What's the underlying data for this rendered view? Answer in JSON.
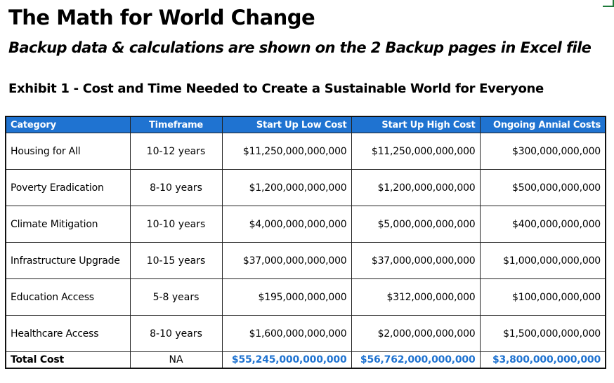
{
  "title": "The Math for World Change",
  "subtitle": "Backup data & calculations are shown on the 2 Backup pages in Excel file",
  "exhibit_title": "Exhibit 1 - Cost and Time Needed to Create a Sustainable World for Everyone",
  "colors": {
    "header_background": "#1f73d1",
    "header_text": "#ffffff",
    "total_value_text": "#1f73d1"
  },
  "table": {
    "headers": {
      "category": "Category",
      "timeframe": "Timeframe",
      "low_cost": "Start Up Low Cost",
      "high_cost": "Start Up High Cost",
      "ongoing": "Ongoing Annial Costs"
    },
    "rows": [
      {
        "category": "Housing for All",
        "timeframe": "10-12 years",
        "low_cost": "$11,250,000,000,000",
        "high_cost": "$11,250,000,000,000",
        "ongoing": "$300,000,000,000"
      },
      {
        "category": "Poverty Eradication",
        "timeframe": "8-10 years",
        "low_cost": "$1,200,000,000,000",
        "high_cost": "$1,200,000,000,000",
        "ongoing": "$500,000,000,000"
      },
      {
        "category": "Climate Mitigation",
        "timeframe": "10-10 years",
        "low_cost": "$4,000,000,000,000",
        "high_cost": "$5,000,000,000,000",
        "ongoing": "$400,000,000,000"
      },
      {
        "category": "Infrastructure Upgrade",
        "timeframe": "10-15 years",
        "low_cost": "$37,000,000,000,000",
        "high_cost": "$37,000,000,000,000",
        "ongoing": "$1,000,000,000,000"
      },
      {
        "category": "Education Access",
        "timeframe": "5-8 years",
        "low_cost": "$195,000,000,000",
        "high_cost": "$312,000,000,000",
        "ongoing": "$100,000,000,000"
      },
      {
        "category": "Healthcare Access",
        "timeframe": "8-10 years",
        "low_cost": "$1,600,000,000,000",
        "high_cost": "$2,000,000,000,000",
        "ongoing": "$1,500,000,000,000"
      }
    ],
    "total": {
      "category": "Total Cost",
      "timeframe": "NA",
      "low_cost": "$55,245,000,000,000",
      "high_cost": "$56,762,000,000,000",
      "ongoing": "$3,800,000,000,000"
    }
  }
}
